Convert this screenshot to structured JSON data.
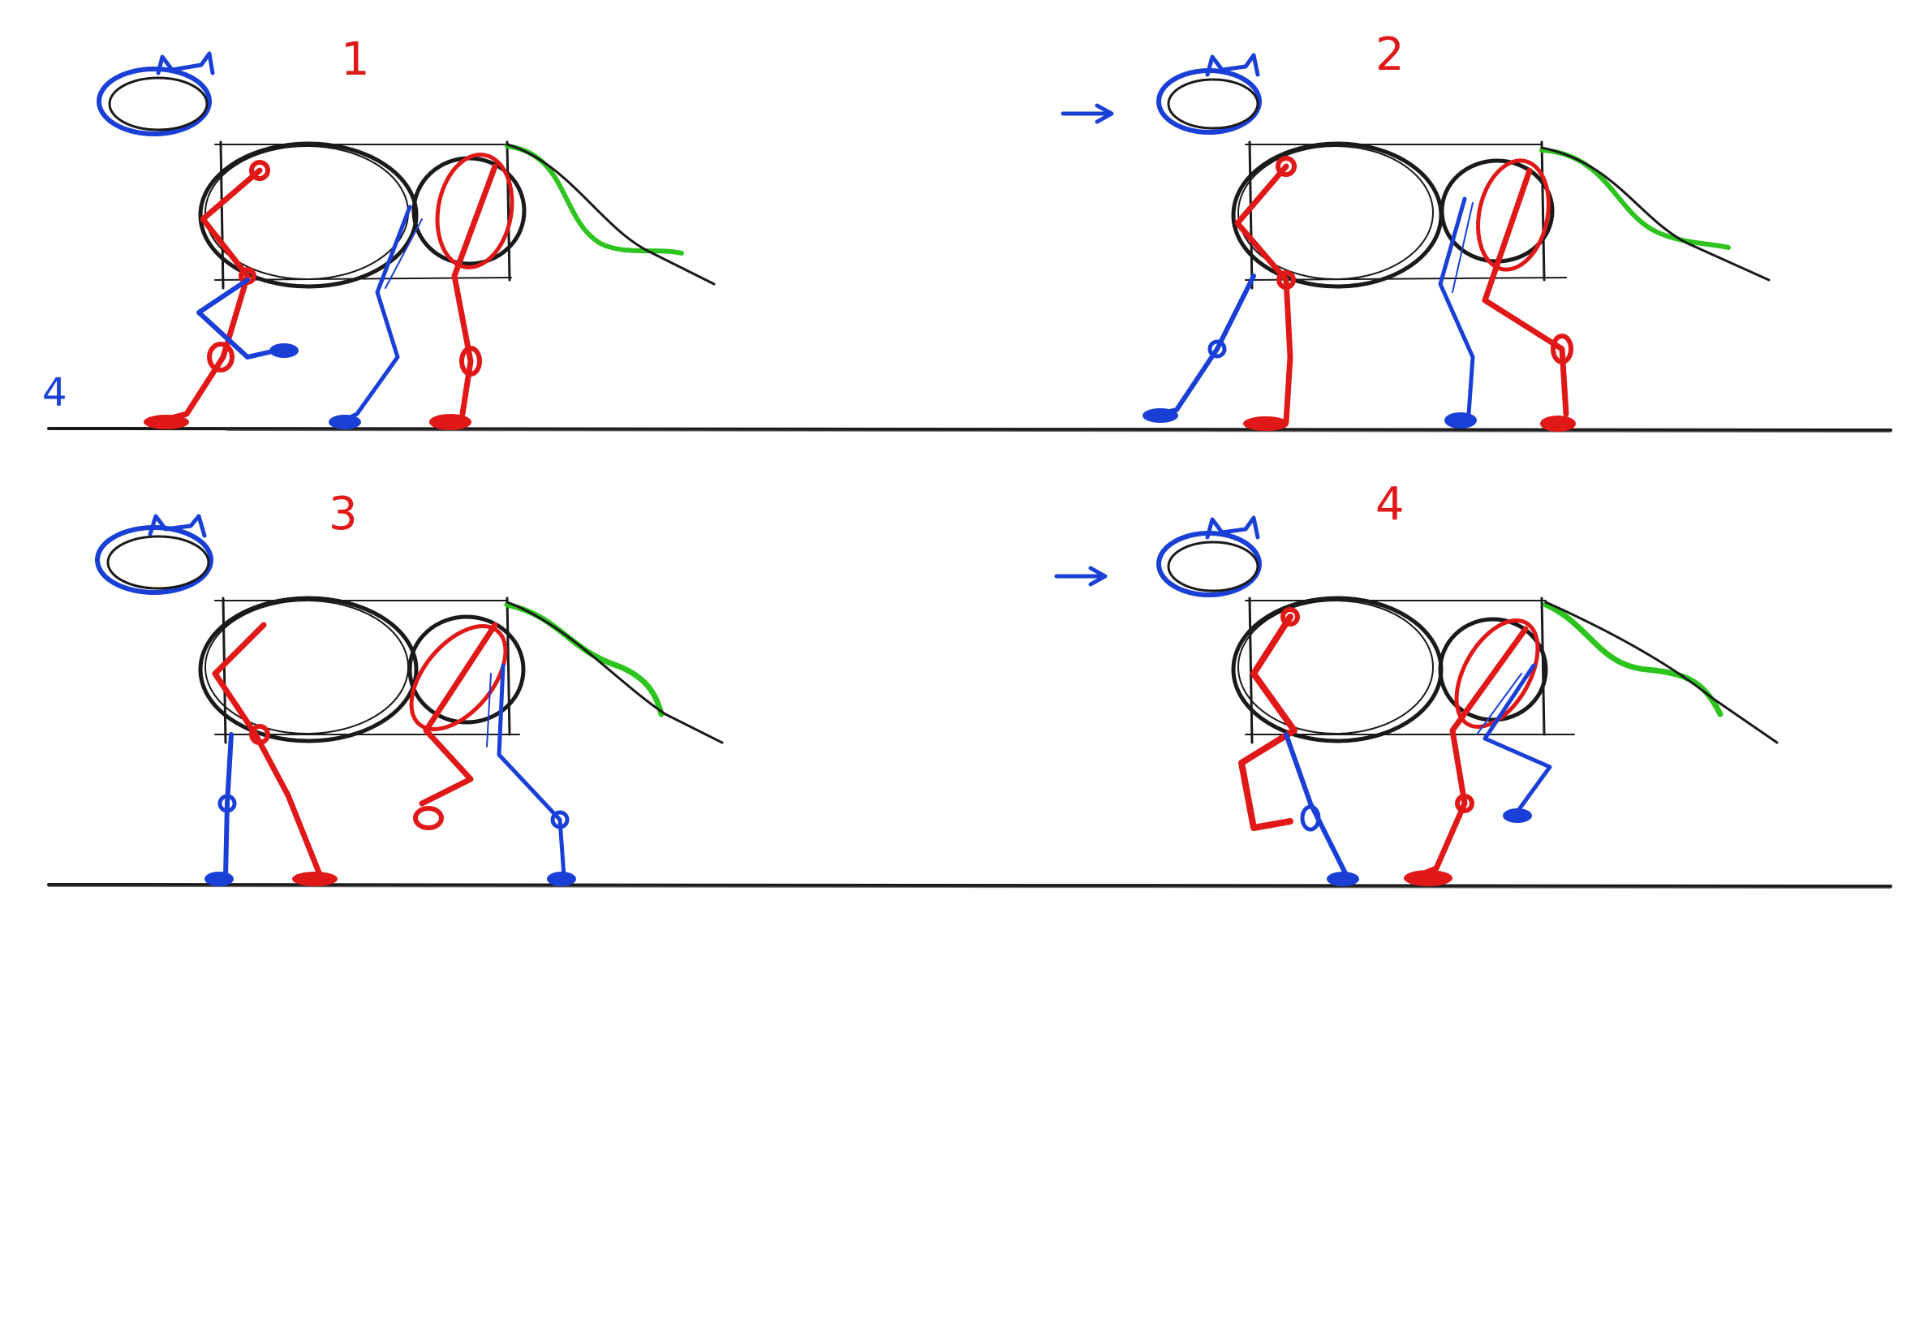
{
  "sheet": {
    "frames": [
      {
        "label": "1",
        "side_note": "4",
        "has_arrow": false
      },
      {
        "label": "2",
        "side_note": "",
        "has_arrow": true
      },
      {
        "label": "3",
        "side_note": "",
        "has_arrow": false
      },
      {
        "label": "4",
        "side_note": "",
        "has_arrow": true
      }
    ]
  },
  "colors": {
    "construction": "#1a1a1a",
    "near_legs": "#e01818",
    "far_legs_and_head": "#1a3fd6",
    "tail": "#2ec41f",
    "background": "#ffffff"
  }
}
